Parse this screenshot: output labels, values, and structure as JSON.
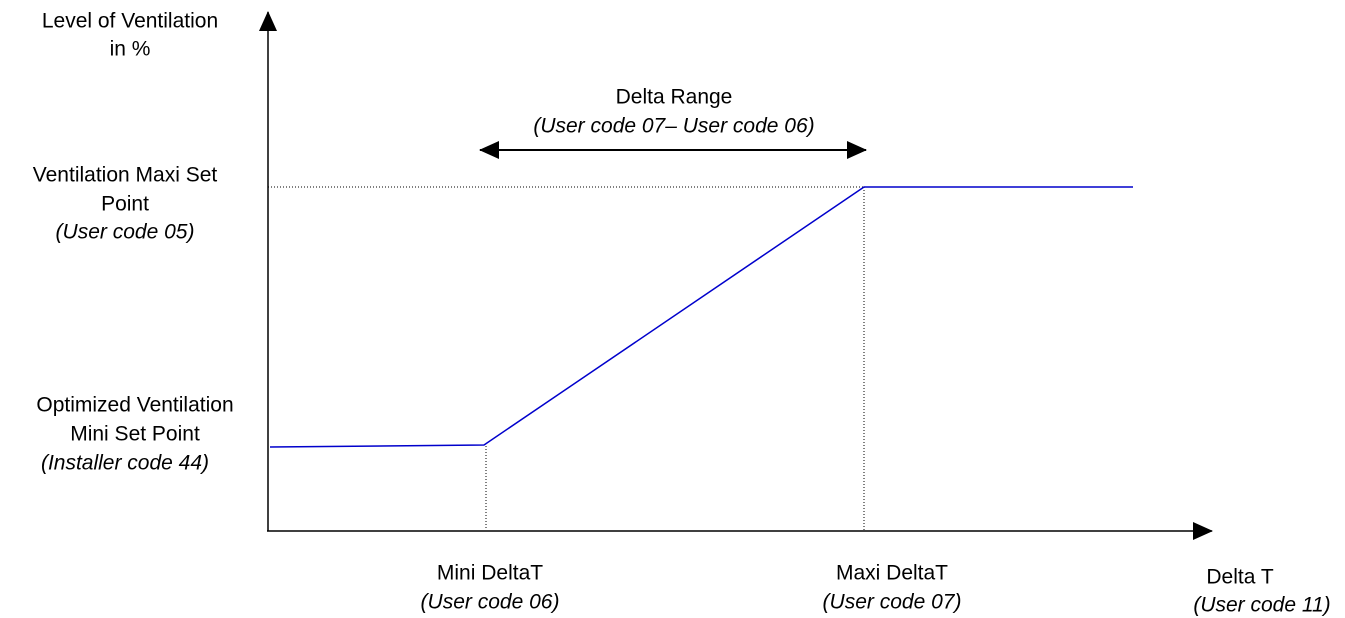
{
  "y_axis": {
    "label_lines": [
      "Level of Ventilation",
      "in %"
    ]
  },
  "x_axis": {
    "label": "Delta T",
    "code": "(User code 11)"
  },
  "levels": [
    {
      "label_lines": [
        "Ventilation Maxi Set",
        "Point"
      ],
      "code": "(User code 05)"
    },
    {
      "label_lines": [
        "Optimized Ventilation",
        "Mini Set Point"
      ],
      "code": "(Installer code 44)"
    }
  ],
  "thresholds": [
    {
      "label": "Mini DeltaT",
      "code": "(User code 06)"
    },
    {
      "label": "Maxi DeltaT",
      "code": "(User code 07)"
    }
  ],
  "delta_range": {
    "label": "Delta Range",
    "code": "(User code 07– User code 06)"
  }
}
